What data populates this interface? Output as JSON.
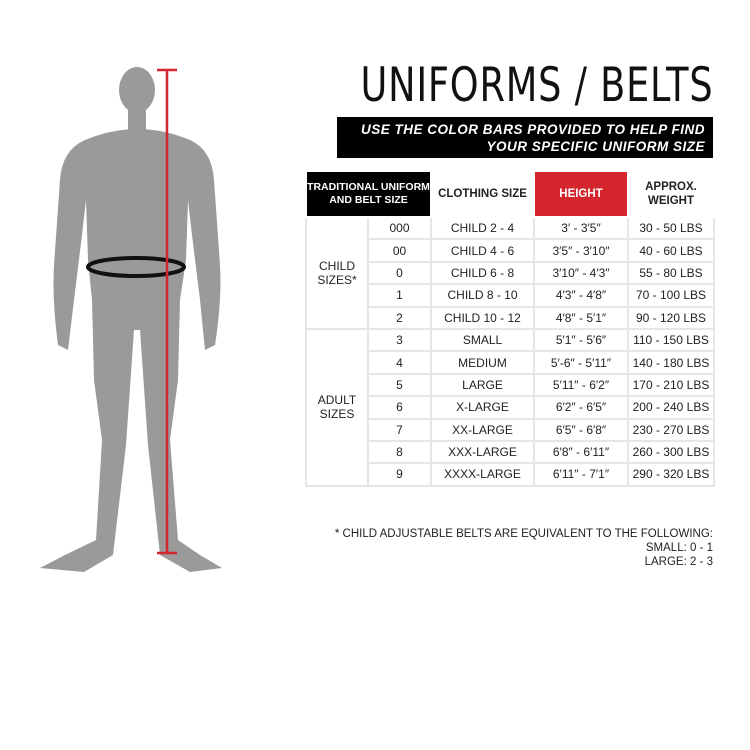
{
  "title": "UNIFORMS / BELTS",
  "banner": {
    "line1": "USE THE COLOR BARS PROVIDED TO HELP FIND",
    "line2": "YOUR SPECIFIC UNIFORM SIZE"
  },
  "table": {
    "headers": {
      "belt": "TRADITIONAL UNIFORM AND BELT SIZE",
      "clothing": "CLOTHING SIZE",
      "height": "HEIGHT",
      "weight": "APPROX. WEIGHT"
    },
    "groups": [
      {
        "label": "CHILD SIZES*",
        "rows": [
          [
            "000",
            "CHILD 2 - 4",
            "3′ - 3′5″",
            "30 - 50 LBS"
          ],
          [
            "00",
            "CHILD 4 - 6",
            "3′5″ - 3′10″",
            "40 - 60 LBS"
          ],
          [
            "0",
            "CHILD 6 - 8",
            "3′10″ - 4′3″",
            "55 - 80 LBS"
          ],
          [
            "1",
            "CHILD 8 - 10",
            "4′3″ - 4′8″",
            "70 - 100 LBS"
          ],
          [
            "2",
            "CHILD 10 - 12",
            "4′8″ - 5′1″",
            "90 - 120 LBS"
          ]
        ]
      },
      {
        "label": "ADULT SIZES",
        "rows": [
          [
            "3",
            "SMALL",
            "5′1″ - 5′6″",
            "110 - 150 LBS"
          ],
          [
            "4",
            "MEDIUM",
            "5′-6″ - 5′11″",
            "140 - 180 LBS"
          ],
          [
            "5",
            "LARGE",
            "5′11″ - 6′2″",
            "170 - 210 LBS"
          ],
          [
            "6",
            "X-LARGE",
            "6′2″ - 6′5″",
            "200 - 240 LBS"
          ],
          [
            "7",
            "XX-LARGE",
            "6′5″ - 6′8″",
            "230 - 270 LBS"
          ],
          [
            "8",
            "XXX-LARGE",
            "6′8″ - 6′11″",
            "260 - 300 LBS"
          ],
          [
            "9",
            "XXXX-LARGE",
            "6′11″ - 7′1″",
            "290 - 320 LBS"
          ]
        ]
      }
    ]
  },
  "note": {
    "line1": "* CHILD ADJUSTABLE BELTS ARE EQUIVALENT TO THE FOLLOWING:",
    "line2": "SMALL: 0 - 1",
    "line3": "LARGE: 2 - 3"
  },
  "colors": {
    "height_header": "#d4262c",
    "height_line": "#d4262c",
    "figure": "#9a9a9a",
    "belt": "#111111"
  }
}
